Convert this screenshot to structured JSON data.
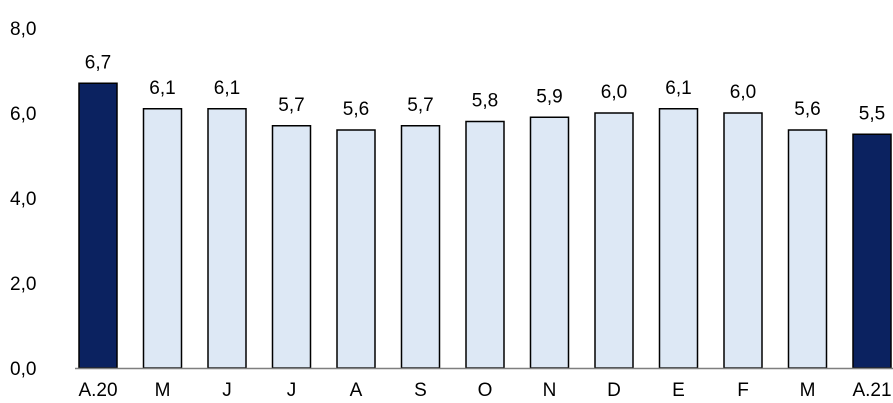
{
  "chart_data": {
    "type": "bar",
    "categories": [
      "A.20",
      "M",
      "J",
      "J",
      "A",
      "S",
      "O",
      "N",
      "D",
      "E",
      "F",
      "M",
      "A.21"
    ],
    "values": [
      6.7,
      6.1,
      6.1,
      5.7,
      5.6,
      5.7,
      5.8,
      5.9,
      6.0,
      6.1,
      6.0,
      5.6,
      5.5
    ],
    "value_labels": [
      "6,7",
      "6,1",
      "6,1",
      "5,7",
      "5,6",
      "5,7",
      "5,8",
      "5,9",
      "6,0",
      "6,1",
      "6,0",
      "5,6",
      "5,5"
    ],
    "highlighted": [
      true,
      false,
      false,
      false,
      false,
      false,
      false,
      false,
      false,
      false,
      false,
      false,
      true
    ],
    "y_ticks": [
      0,
      2,
      4,
      6,
      8
    ],
    "y_tick_labels": [
      "0,0",
      "2,0",
      "4,0",
      "6,0",
      "8,0"
    ],
    "ylim": [
      0,
      8
    ],
    "title": "",
    "xlabel": "",
    "ylabel": "",
    "grid": false,
    "legend": "none",
    "colors": {
      "highlight": "#0b2260",
      "default": "#dde8f5",
      "stroke": "#000000",
      "axis": "#7f7f7f"
    }
  }
}
